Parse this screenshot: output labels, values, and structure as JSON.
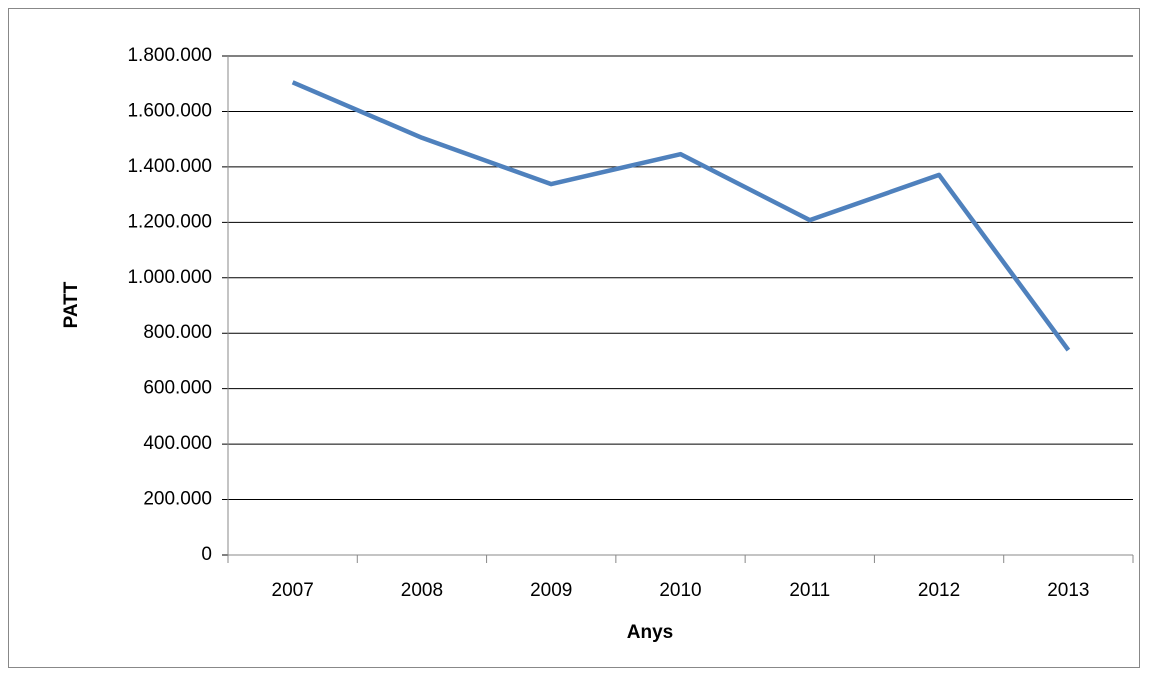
{
  "chart_data": {
    "type": "line",
    "x_label": "Anys",
    "y_label": "PATT",
    "categories": [
      "2007",
      "2008",
      "2009",
      "2010",
      "2011",
      "2012",
      "2013"
    ],
    "series": [
      {
        "name": "PATT",
        "color": "#4f81bd",
        "values": [
          1705000,
          1505000,
          1338000,
          1446000,
          1208000,
          1371000,
          739000
        ]
      }
    ],
    "ylim": [
      0,
      1800000
    ],
    "yticks": [
      0,
      {
        "value": 200000,
        "label": "200.000"
      },
      {
        "value": 400000,
        "label": "400.000"
      },
      {
        "value": 600000,
        "label": "600.000"
      },
      {
        "value": 800000,
        "label": "800.000"
      },
      {
        "value": 1000000,
        "label": "1.000.000"
      },
      {
        "value": 1200000,
        "label": "1.200.000"
      },
      {
        "value": 1400000,
        "label": "1.400.000"
      },
      {
        "value": 1600000,
        "label": "1.600.000"
      },
      {
        "value": 1800000,
        "label": "1.800.000"
      }
    ],
    "grid": true
  }
}
